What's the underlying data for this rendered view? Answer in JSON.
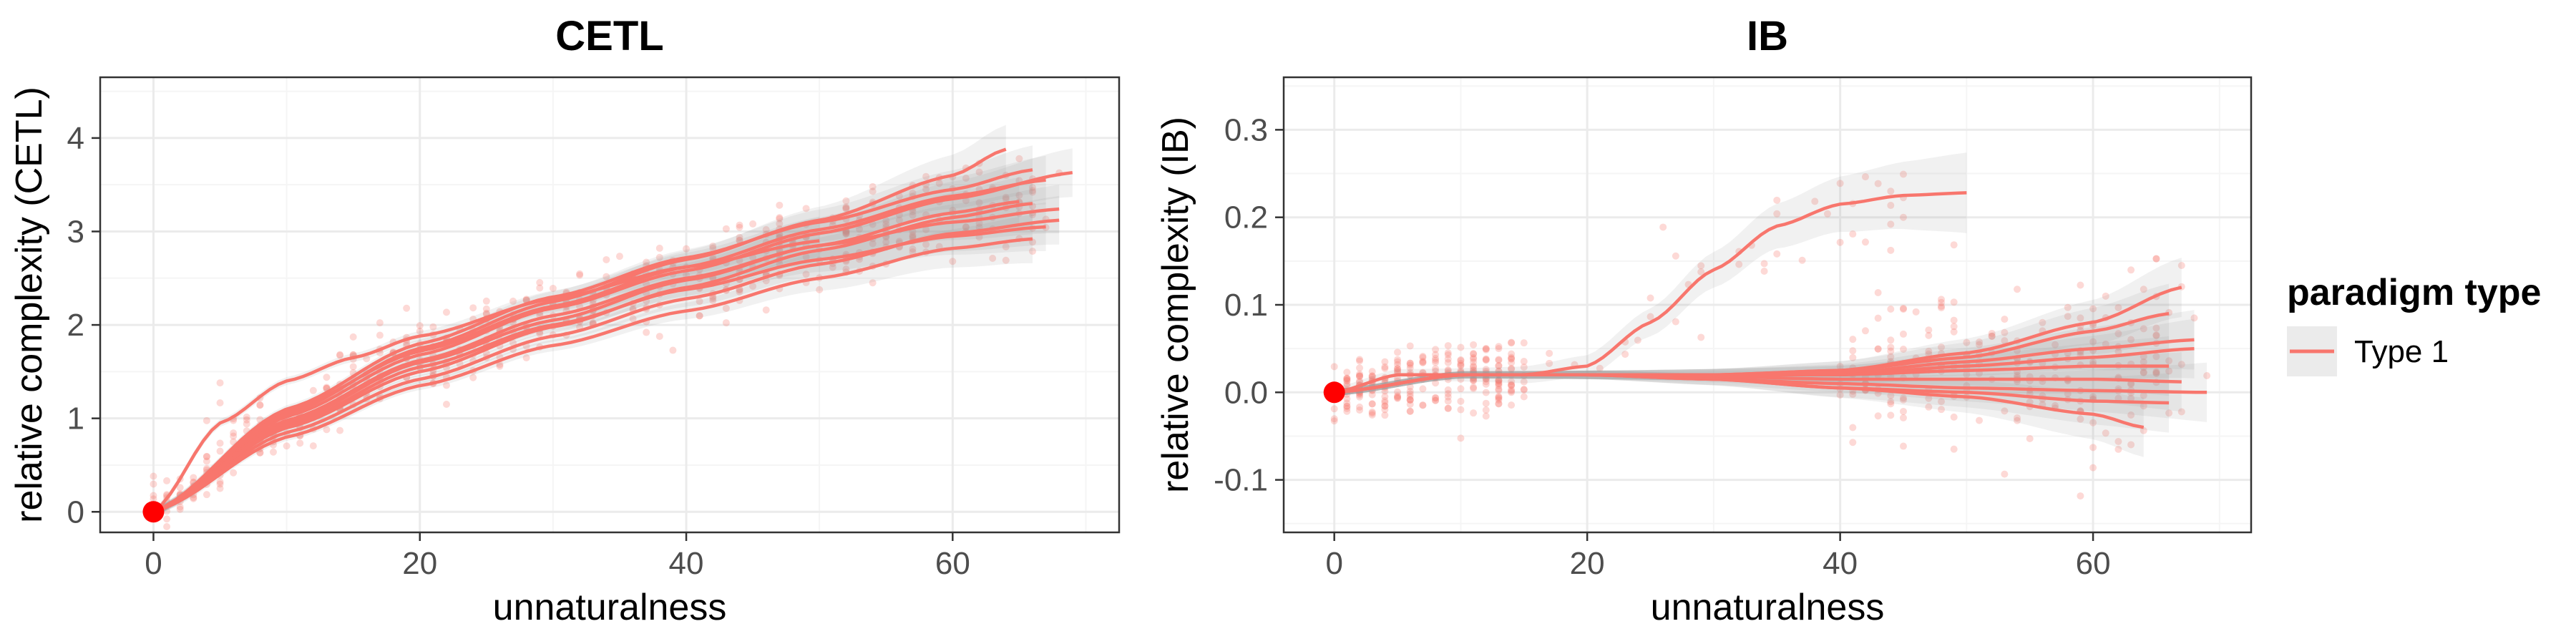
{
  "chart_data": [
    {
      "type": "scatter",
      "title": "CETL",
      "xlabel": "unnaturalness",
      "ylabel": "relative complexity (CETL)",
      "xlim": [
        -4,
        72.5
      ],
      "ylim": [
        -0.22,
        4.65
      ],
      "xticks": [
        0,
        20,
        40,
        60
      ],
      "yticks": [
        0,
        1,
        2,
        3,
        4
      ],
      "grid": true,
      "origin_point": {
        "x": 0,
        "y": 0,
        "color": "#ff0000"
      },
      "smooth_colour": "#f8766d",
      "band_colour": "#999999",
      "series": [
        {
          "x": [
            0,
            10,
            20,
            30,
            40,
            50,
            60,
            65
          ],
          "y": [
            0,
            0.98,
            1.62,
            2.1,
            2.5,
            2.85,
            3.2,
            3.32
          ]
        },
        {
          "x": [
            0,
            10,
            20,
            30,
            40,
            50,
            60,
            67
          ],
          "y": [
            0,
            1.08,
            1.72,
            2.2,
            2.62,
            3.02,
            3.38,
            3.55
          ]
        },
        {
          "x": [
            0,
            10,
            20,
            30,
            40,
            50,
            60,
            69
          ],
          "y": [
            0,
            1.02,
            1.68,
            2.18,
            2.58,
            2.98,
            3.35,
            3.63
          ]
        },
        {
          "x": [
            0,
            10,
            20,
            30,
            40,
            50,
            60,
            66
          ],
          "y": [
            0,
            0.9,
            1.5,
            1.98,
            2.4,
            2.8,
            3.15,
            3.3
          ]
        },
        {
          "x": [
            0,
            10,
            20,
            30,
            40,
            50,
            60,
            64
          ],
          "y": [
            0,
            1.05,
            1.75,
            2.25,
            2.7,
            3.12,
            3.6,
            3.88
          ]
        },
        {
          "x": [
            0,
            10,
            20,
            30,
            40,
            50,
            60,
            68
          ],
          "y": [
            0,
            0.95,
            1.6,
            2.05,
            2.48,
            2.85,
            3.1,
            3.24
          ]
        },
        {
          "x": [
            0,
            10,
            20,
            30,
            40,
            50,
            60,
            66
          ],
          "y": [
            0,
            1.1,
            1.8,
            2.3,
            2.72,
            3.1,
            3.45,
            3.66
          ]
        },
        {
          "x": [
            0,
            10,
            20,
            30,
            40,
            50,
            60,
            68
          ],
          "y": [
            0,
            0.85,
            1.42,
            1.88,
            2.28,
            2.65,
            2.98,
            3.12
          ]
        },
        {
          "x": [
            0,
            10,
            20,
            30,
            40,
            50,
            60,
            67
          ],
          "y": [
            0,
            0.92,
            1.55,
            2.0,
            2.38,
            2.7,
            2.95,
            3.05
          ]
        },
        {
          "x": [
            0,
            10,
            20,
            30,
            40,
            50,
            60,
            66
          ],
          "y": [
            0,
            0.8,
            1.35,
            1.78,
            2.15,
            2.5,
            2.82,
            2.92
          ]
        },
        {
          "x": [
            0,
            5,
            10,
            15,
            20,
            30,
            40,
            50
          ],
          "y": [
            0,
            0.95,
            1.4,
            1.65,
            1.88,
            2.28,
            2.62,
            2.9
          ]
        }
      ]
    },
    {
      "type": "scatter",
      "title": "IB",
      "xlabel": "unnaturalness",
      "ylabel": "relative complexity (IB)",
      "xlim": [
        -4,
        72.5
      ],
      "ylim": [
        -0.16,
        0.36
      ],
      "xticks": [
        0,
        20,
        40,
        60
      ],
      "yticks": [
        -0.1,
        0.0,
        0.1,
        0.2,
        0.3
      ],
      "ytick_labels": [
        "-0.1",
        "0.0",
        "0.1",
        "0.2",
        "0.3"
      ],
      "grid": true,
      "origin_point": {
        "x": 0,
        "y": 0,
        "color": "#ff0000"
      },
      "smooth_colour": "#f8766d",
      "band_colour": "#999999",
      "series": [
        {
          "x": [
            0,
            5,
            10,
            15,
            20,
            25,
            30,
            35,
            40,
            45,
            50
          ],
          "y": [
            0,
            0.02,
            0.02,
            0.02,
            0.03,
            0.08,
            0.14,
            0.19,
            0.215,
            0.225,
            0.228
          ]
        },
        {
          "x": [
            0,
            10,
            20,
            30,
            40,
            50,
            60,
            67
          ],
          "y": [
            0,
            0.02,
            0.02,
            0.02,
            0.025,
            0.045,
            0.08,
            0.12
          ]
        },
        {
          "x": [
            0,
            10,
            20,
            30,
            40,
            50,
            60,
            66
          ],
          "y": [
            0,
            0.02,
            0.02,
            0.02,
            0.025,
            0.04,
            0.07,
            0.09
          ]
        },
        {
          "x": [
            0,
            10,
            20,
            30,
            40,
            50,
            60,
            68
          ],
          "y": [
            0,
            0.02,
            0.02,
            0.02,
            0.022,
            0.035,
            0.05,
            0.06
          ]
        },
        {
          "x": [
            0,
            10,
            20,
            30,
            40,
            50,
            60,
            68
          ],
          "y": [
            0,
            0.02,
            0.02,
            0.02,
            0.02,
            0.03,
            0.04,
            0.05
          ]
        },
        {
          "x": [
            0,
            10,
            20,
            30,
            40,
            50,
            60,
            66
          ],
          "y": [
            0,
            0.02,
            0.02,
            0.02,
            0.02,
            0.025,
            0.03,
            0.03
          ]
        },
        {
          "x": [
            0,
            10,
            20,
            30,
            40,
            50,
            60,
            67
          ],
          "y": [
            0,
            0.02,
            0.02,
            0.018,
            0.015,
            0.015,
            0.015,
            0.012
          ]
        },
        {
          "x": [
            0,
            10,
            20,
            30,
            40,
            50,
            60,
            69
          ],
          "y": [
            0,
            0.02,
            0.02,
            0.015,
            0.01,
            0.005,
            0.002,
            0.0
          ]
        },
        {
          "x": [
            0,
            10,
            20,
            30,
            40,
            50,
            60,
            66
          ],
          "y": [
            0,
            0.02,
            0.02,
            0.015,
            0.005,
            0.0,
            -0.01,
            -0.012
          ]
        },
        {
          "x": [
            0,
            10,
            20,
            30,
            40,
            50,
            60,
            64
          ],
          "y": [
            0,
            0.02,
            0.02,
            0.015,
            0.005,
            -0.005,
            -0.025,
            -0.04
          ]
        }
      ]
    }
  ],
  "legend": {
    "title": "paradigm type",
    "entries": [
      {
        "label": "Type 1",
        "color": "#f8766d"
      }
    ]
  }
}
